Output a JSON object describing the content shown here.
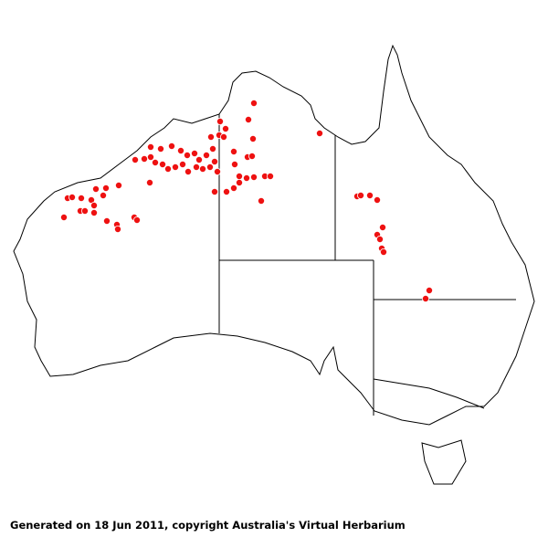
{
  "map": {
    "region": "Australia",
    "marker_color": "#ee1111",
    "outline_color": "#000000"
  },
  "footer": {
    "text": "Generated on 18 Jun 2011, copyright Australia's Virtual Herbarium"
  }
}
